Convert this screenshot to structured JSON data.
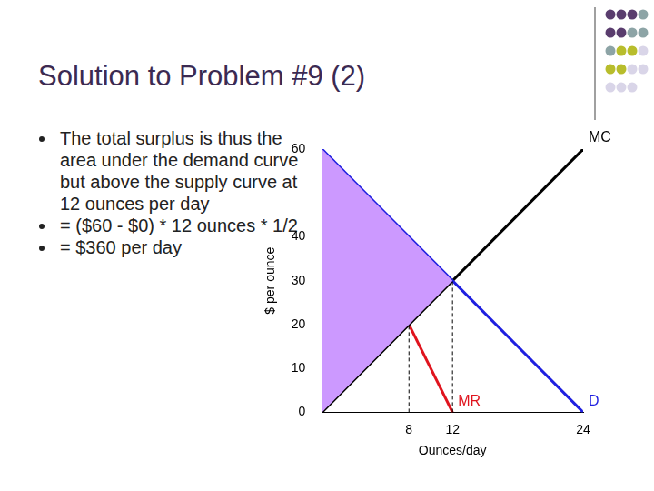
{
  "title": "Solution to Problem #9 (2)",
  "bullets": [
    "The total surplus is thus the area under the demand curve but above the supply curve at 12 ounces per day",
    "= ($60 - $0) * 12 ounces * 1/2",
    "= $360 per day"
  ],
  "chart_data": {
    "type": "line",
    "x_label": "Ounces/day",
    "y_label": "$ per ounce",
    "xlim": [
      0,
      24
    ],
    "xticks": [
      8,
      12,
      24
    ],
    "ylim": [
      0,
      60
    ],
    "yticks": [
      0,
      10,
      20,
      30,
      40,
      60
    ],
    "grid": false,
    "series": [
      {
        "type": "area",
        "color": "#cc99ff",
        "x": [
          0,
          0,
          12
        ],
        "values": [
          0,
          60,
          30
        ]
      },
      {
        "color": "#000000",
        "line_style": "dashed",
        "x": [
          8,
          8
        ],
        "values": [
          0,
          20
        ]
      },
      {
        "color": "#000000",
        "line_style": "dashed",
        "x": [
          12,
          12
        ],
        "values": [
          0,
          30
        ]
      },
      {
        "name": "D",
        "color": "#1f1fe0",
        "x": [
          0,
          24
        ],
        "values": [
          60,
          0
        ]
      },
      {
        "name": "MC",
        "color": "#000000",
        "x": [
          0,
          24
        ],
        "values": [
          0,
          60
        ]
      },
      {
        "name": "MR",
        "color": "#e0141e",
        "x": [
          8,
          12
        ],
        "values": [
          20,
          0
        ]
      }
    ]
  }
}
